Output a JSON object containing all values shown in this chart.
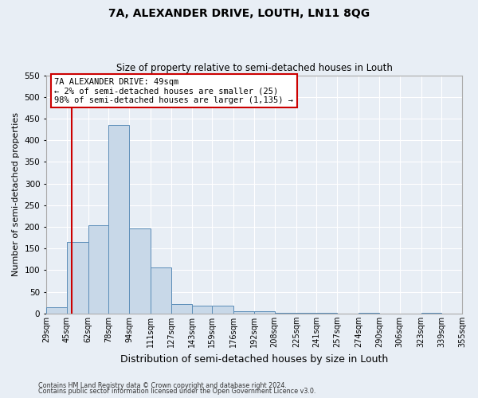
{
  "title": "7A, ALEXANDER DRIVE, LOUTH, LN11 8QG",
  "subtitle": "Size of property relative to semi-detached houses in Louth",
  "xlabel": "Distribution of semi-detached houses by size in Louth",
  "ylabel": "Number of semi-detached properties",
  "bin_edges": [
    29,
    45,
    62,
    78,
    94,
    111,
    127,
    143,
    159,
    176,
    192,
    208,
    225,
    241,
    257,
    274,
    290,
    306,
    323,
    339,
    355
  ],
  "bar_heights": [
    15,
    165,
    204,
    435,
    197,
    106,
    22,
    18,
    18,
    6,
    6,
    2,
    2,
    2,
    0,
    2,
    0,
    0,
    2,
    0
  ],
  "bar_color": "#c8d8e8",
  "bar_edge_color": "#5b8db8",
  "property_size": 49,
  "pct_smaller": 2,
  "count_smaller": 25,
  "pct_larger": 98,
  "count_larger": 1135,
  "annotation_line_color": "#cc0000",
  "ylim": [
    0,
    550
  ],
  "yticks": [
    0,
    50,
    100,
    150,
    200,
    250,
    300,
    350,
    400,
    450,
    500,
    550
  ],
  "bg_color": "#e8eef5",
  "grid_color": "#ffffff",
  "footer1": "Contains HM Land Registry data © Crown copyright and database right 2024.",
  "footer2": "Contains public sector information licensed under the Open Government Licence v3.0."
}
